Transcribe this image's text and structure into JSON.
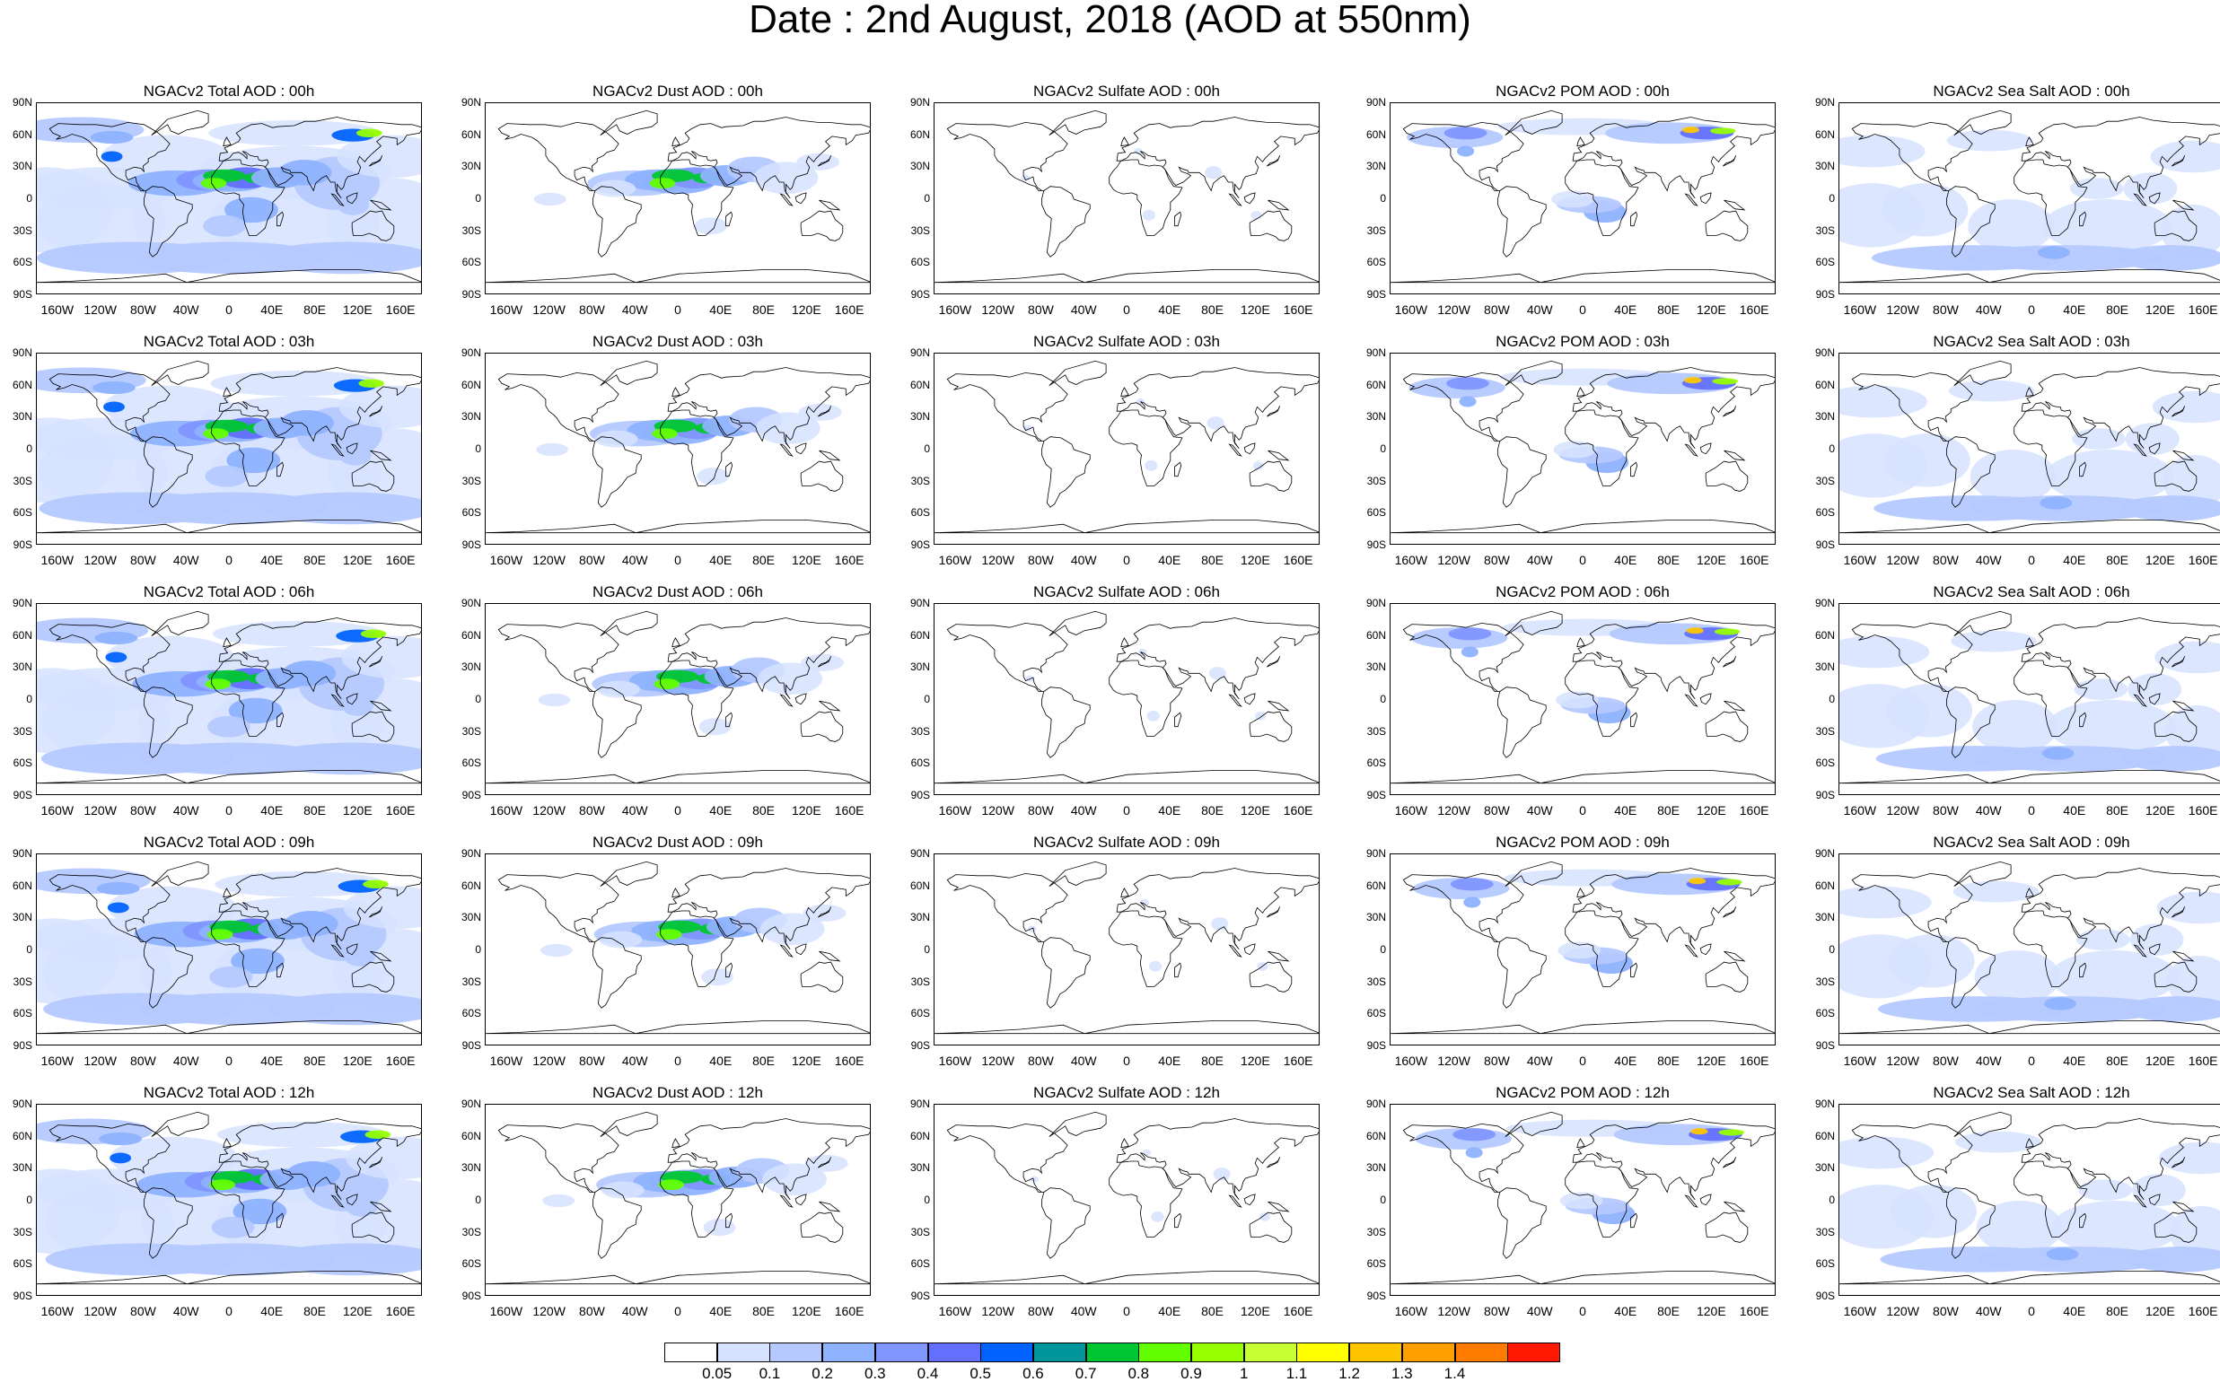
{
  "title": "Date : 2nd August, 2018 (AOD at 550nm)",
  "lat_labels": [
    "90N",
    "60N",
    "30N",
    "0",
    "30S",
    "60S",
    "90S"
  ],
  "lon_labels": [
    "160W",
    "120W",
    "80W",
    "40W",
    "0",
    "40E",
    "80E",
    "120E",
    "160E"
  ],
  "panels": [
    [
      "NGACv2 Total AOD : 00h",
      "NGACv2 Dust AOD : 00h",
      "NGACv2 Sulfate AOD : 00h",
      "NGACv2 POM AOD : 00h",
      "NGACv2 Sea Salt AOD : 00h"
    ],
    [
      "NGACv2 Total AOD : 03h",
      "NGACv2 Dust AOD : 03h",
      "NGACv2 Sulfate AOD : 03h",
      "NGACv2 POM AOD : 03h",
      "NGACv2 Sea Salt AOD : 03h"
    ],
    [
      "NGACv2 Total AOD : 06h",
      "NGACv2 Dust AOD : 06h",
      "NGACv2 Sulfate AOD : 06h",
      "NGACv2 POM AOD : 06h",
      "NGACv2 Sea Salt AOD : 06h"
    ],
    [
      "NGACv2 Total AOD : 09h",
      "NGACv2 Dust AOD : 09h",
      "NGACv2 Sulfate AOD : 09h",
      "NGACv2 POM AOD : 09h",
      "NGACv2 Sea Salt  AOD : 09h"
    ],
    [
      "NGACv2 Total AOD :  12h",
      "NGACv2 Dust AOD : 12h",
      "NGACv2 Sulfate AOD : 12h",
      "NGACv2 POM  AOD : 12h",
      "NGACv2 Sea Salt AOD : 12h"
    ]
  ],
  "colorbar": {
    "labels": [
      "0.05",
      "0.1",
      "0.2",
      "0.3",
      "0.4",
      "0.5",
      "0.6",
      "0.7",
      "0.8",
      "0.9",
      "1",
      "1.1",
      "1.2",
      "1.3",
      "1.4"
    ],
    "colors": [
      "#ffffff",
      "#d6e2ff",
      "#b5c9ff",
      "#8eb2ff",
      "#7f96ff",
      "#6370ff",
      "#0063ff",
      "#00969b",
      "#00c633",
      "#63ff00",
      "#96ff00",
      "#c6ff33",
      "#ffff00",
      "#ffc600",
      "#ffa000",
      "#ff7c00",
      "#ff1900"
    ]
  }
}
